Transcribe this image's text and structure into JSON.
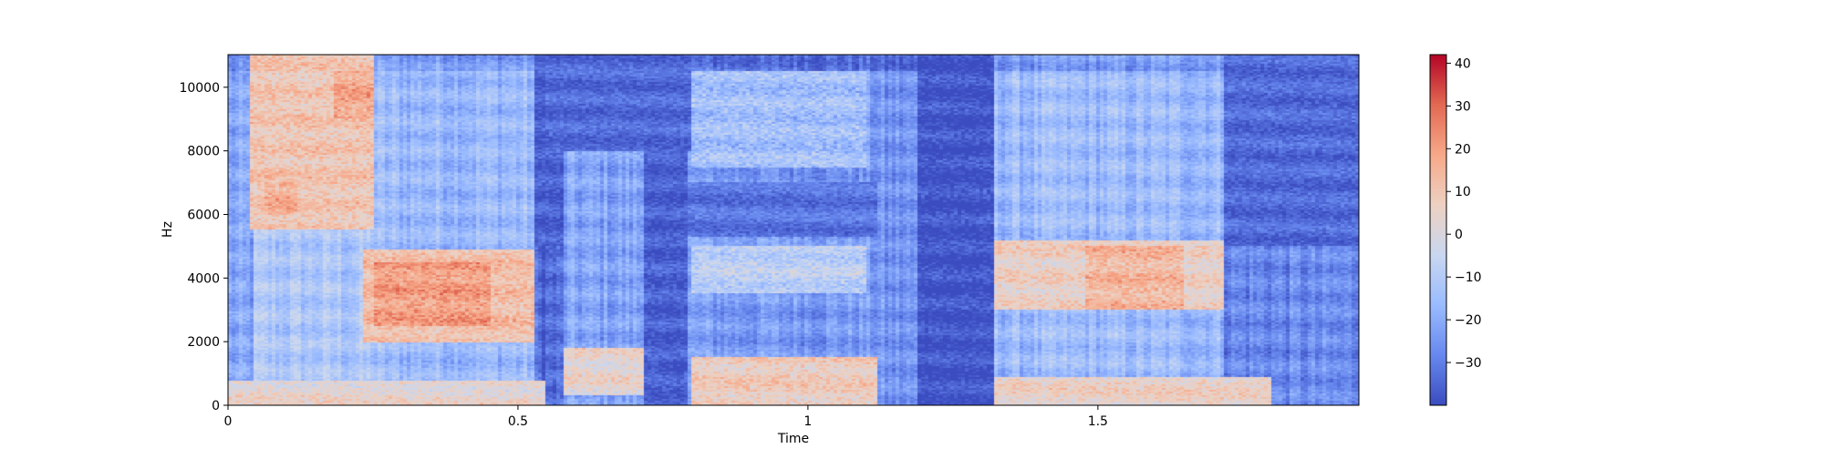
{
  "chart_data": [
    {
      "type": "heatmap",
      "subtype": "spectrogram",
      "xlabel": "Time",
      "ylabel": "Hz",
      "xlim": [
        0,
        1.95
      ],
      "ylim": [
        0,
        11025
      ],
      "x_ticks": [
        0,
        0.5,
        1,
        1.5
      ],
      "x_tick_labels": [
        "0",
        "0.5",
        "1",
        "1.5"
      ],
      "y_ticks": [
        0,
        2000,
        4000,
        6000,
        8000,
        10000
      ],
      "y_tick_labels": [
        "0",
        "2000",
        "4000",
        "6000",
        "8000",
        "10000"
      ],
      "colormap": "coolwarm",
      "colormap_stops": [
        "#3b4cc0",
        "#6788ee",
        "#9abbff",
        "#c9d7f0",
        "#edd1c2",
        "#f7a889",
        "#e26952",
        "#b40426"
      ],
      "grid": false,
      "legend": "none",
      "colorbar": {
        "range": [
          -40,
          42
        ],
        "ticks": [
          -30,
          -20,
          -10,
          0,
          10,
          20,
          30,
          40
        ],
        "tick_labels": [
          "−30",
          "−20",
          "−10",
          "0",
          "10",
          "20",
          "30",
          "40"
        ]
      },
      "time_segments": [
        {
          "t_start": 0.0,
          "t_end": 0.045,
          "level": -22
        },
        {
          "t_start": 0.045,
          "t_end": 0.25,
          "level": -12
        },
        {
          "t_start": 0.25,
          "t_end": 0.53,
          "level": -16
        },
        {
          "t_start": 0.53,
          "t_end": 0.58,
          "level": -34
        },
        {
          "t_start": 0.58,
          "t_end": 0.72,
          "level": -22
        },
        {
          "t_start": 0.72,
          "t_end": 0.79,
          "level": -32
        },
        {
          "t_start": 0.79,
          "t_end": 1.12,
          "level": -24
        },
        {
          "t_start": 1.12,
          "t_end": 1.19,
          "level": -26
        },
        {
          "t_start": 1.19,
          "t_end": 1.32,
          "level": -36
        },
        {
          "t_start": 1.32,
          "t_end": 1.72,
          "level": -16
        },
        {
          "t_start": 1.72,
          "t_end": 1.95,
          "level": -28
        }
      ],
      "energy_regions": [
        {
          "t": [
            0.04,
            0.25
          ],
          "f": [
            5500,
            11000
          ],
          "level": 10
        },
        {
          "t": [
            0.18,
            0.25
          ],
          "f": [
            9000,
            10500
          ],
          "level": 18
        },
        {
          "t": [
            0.06,
            0.12
          ],
          "f": [
            6000,
            7000
          ],
          "level": 16
        },
        {
          "t": [
            0.23,
            0.53
          ],
          "f": [
            2000,
            4900
          ],
          "level": 12
        },
        {
          "t": [
            0.25,
            0.45
          ],
          "f": [
            2500,
            4500
          ],
          "level": 20
        },
        {
          "t": [
            0.0,
            0.55
          ],
          "f": [
            0,
            800
          ],
          "level": 4
        },
        {
          "t": [
            0.58,
            0.72
          ],
          "f": [
            300,
            1800
          ],
          "level": 4
        },
        {
          "t": [
            0.8,
            1.12
          ],
          "f": [
            0,
            1500
          ],
          "level": 8
        },
        {
          "t": [
            0.8,
            1.1
          ],
          "f": [
            3500,
            5000
          ],
          "level": -8
        },
        {
          "t": [
            0.8,
            1.1
          ],
          "f": [
            7500,
            10500
          ],
          "level": -14
        },
        {
          "t": [
            1.32,
            1.72
          ],
          "f": [
            3000,
            5200
          ],
          "level": 6
        },
        {
          "t": [
            1.48,
            1.65
          ],
          "f": [
            3000,
            5000
          ],
          "level": 14
        },
        {
          "t": [
            1.32,
            1.8
          ],
          "f": [
            0,
            900
          ],
          "level": 6
        }
      ],
      "silent_regions": [
        {
          "t": [
            0.53,
            0.58
          ],
          "f": [
            5000,
            11025
          ],
          "level": -36
        },
        {
          "t": [
            0.72,
            0.79
          ],
          "f": [
            0,
            11025
          ],
          "level": -36
        },
        {
          "t": [
            1.19,
            1.32
          ],
          "f": [
            0,
            11025
          ],
          "level": -38
        },
        {
          "t": [
            0.55,
            0.8
          ],
          "f": [
            8000,
            11025
          ],
          "level": -34
        },
        {
          "t": [
            0.79,
            1.12
          ],
          "f": [
            5300,
            7000
          ],
          "level": -32
        },
        {
          "t": [
            1.72,
            1.95
          ],
          "f": [
            5000,
            11025
          ],
          "level": -34
        }
      ]
    }
  ]
}
